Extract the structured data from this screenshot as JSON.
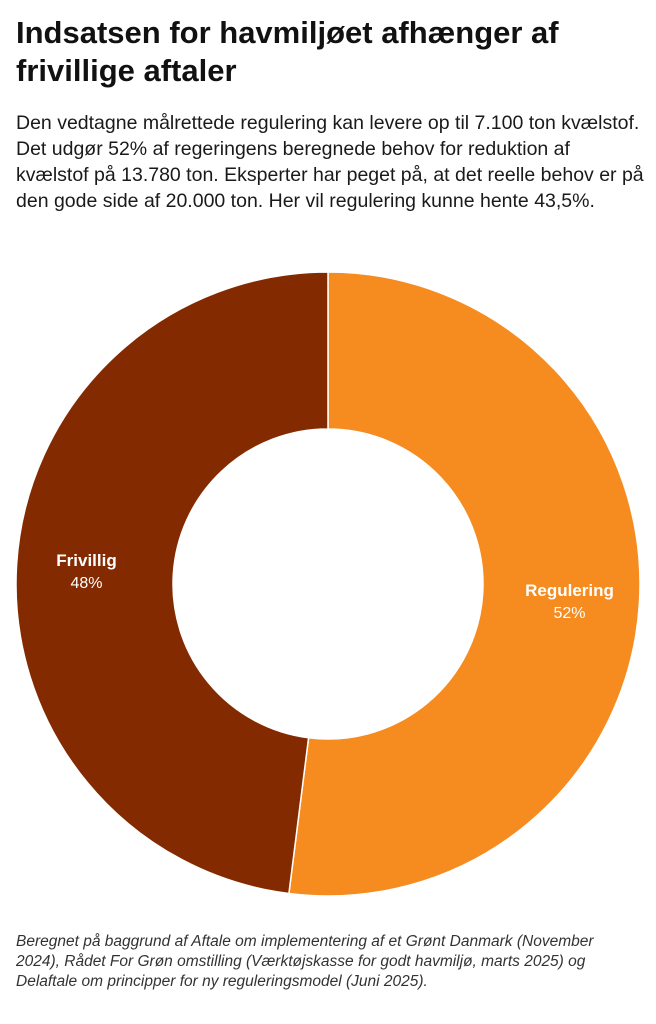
{
  "header": {
    "title": "Indsatsen for havmiljøet afhænger af frivillige aftaler",
    "subtitle": "Den vedtagne målrettede regulering kan levere op til 7.100 ton kvælstof. Det udgør 52% af regeringens beregnede behov for reduktion af kvælstof på 13.780 ton. Eksperter har peget på, at det reelle behov er på den gode side af 20.000 ton. Her vil regulering kunne hente 43,5%."
  },
  "chart_data": {
    "type": "pie",
    "subtype": "donut",
    "title": "Indsatsen for havmiljøet afhænger af frivillige aftaler",
    "slices": [
      {
        "name": "Regulering",
        "value": 52,
        "value_label": "52%",
        "color": "#f68b1f"
      },
      {
        "name": "Frivillig",
        "value": 48,
        "value_label": "48%",
        "color": "#832a01"
      }
    ],
    "start_angle": "12 o'clock",
    "direction": "clockwise",
    "label_color": "#ffffff"
  },
  "footer": {
    "source": "Beregnet på baggrund af Aftale om implementering af et Grønt Danmark (November 2024), Rådet For Grøn omstilling (Værktøjskasse  for godt havmiljø, marts 2025) og Delaftale om principper for ny reguleringsmodel (Juni 2025)."
  }
}
